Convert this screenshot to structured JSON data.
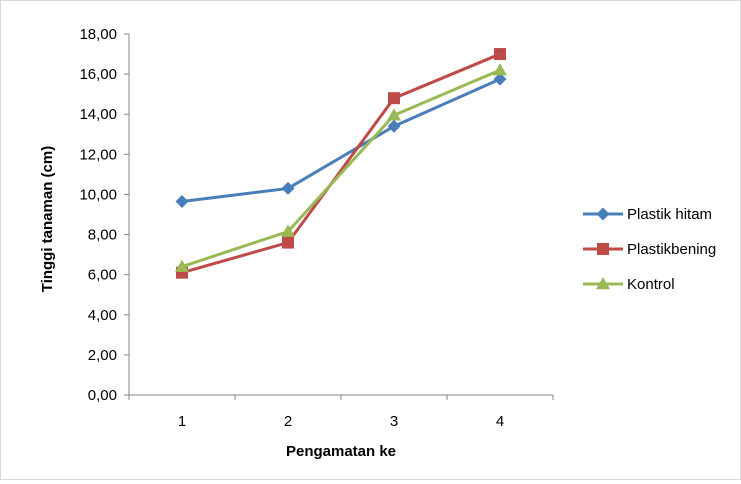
{
  "chart_data": {
    "type": "line",
    "title": "",
    "xlabel": "Pengamatan ke",
    "ylabel": "Tinggi tanaman (cm)",
    "categories": [
      "1",
      "2",
      "3",
      "4"
    ],
    "ylim": [
      0,
      18
    ],
    "yticks": [
      "0,00",
      "2,00",
      "4,00",
      "6,00",
      "8,00",
      "10,00",
      "12,00",
      "14,00",
      "16,00",
      "18,00"
    ],
    "grid": false,
    "legend_position": "right",
    "series": [
      {
        "name": "Plastik hitam",
        "values": [
          9.65,
          10.3,
          13.4,
          15.75
        ],
        "color": "#4a7ebb",
        "marker": "diamond"
      },
      {
        "name": "Plastikbening",
        "values": [
          6.1,
          7.6,
          14.8,
          17.0
        ],
        "color": "#be4b48",
        "marker": "square"
      },
      {
        "name": "Kontrol",
        "values": [
          6.4,
          8.15,
          13.95,
          16.2
        ],
        "color": "#98b954",
        "marker": "triangle"
      }
    ]
  }
}
